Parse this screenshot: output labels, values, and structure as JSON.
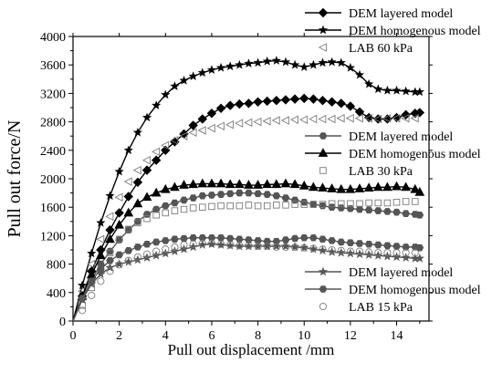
{
  "chart_data": {
    "type": "line",
    "xlabel": "Pull out displacement /mm",
    "ylabel": "Pull out force/N",
    "xlim": [
      0,
      15.4
    ],
    "ylim": [
      0,
      4000
    ],
    "xticks": [
      0,
      2,
      4,
      6,
      8,
      10,
      12,
      14
    ],
    "yticks": [
      0,
      400,
      800,
      1200,
      1600,
      2000,
      2400,
      2800,
      3200,
      3600,
      4000
    ],
    "grid": false,
    "legend_groups": [
      {
        "placement": "top-right",
        "entries": [
          {
            "label": "DEM layered model",
            "marker": "diamond"
          },
          {
            "label": "DEM homogenous model",
            "marker": "star"
          },
          {
            "label": "LAB   60 kPa",
            "marker": "triangle-left"
          }
        ]
      },
      {
        "placement": "center-right",
        "entries": [
          {
            "label": "DEM layered model",
            "marker": "hexagon"
          },
          {
            "label": "DEM homogenous model",
            "marker": "triangle-up"
          },
          {
            "label": "LAB   30 kPa",
            "marker": "square"
          }
        ]
      },
      {
        "placement": "bottom-right",
        "entries": [
          {
            "label": "DEM layered model",
            "marker": "star"
          },
          {
            "label": "DEM homogenous model",
            "marker": "hexagon"
          },
          {
            "label": "LAB   15 kPa",
            "marker": "circle"
          }
        ]
      }
    ],
    "series": [
      {
        "name": "DEM layered model",
        "group": "60 kPa",
        "marker": "diamond",
        "color": "#000000",
        "line": true,
        "x": [
          0,
          0.4,
          0.8,
          1.2,
          1.6,
          2.0,
          2.4,
          2.8,
          3.2,
          3.6,
          4.0,
          4.4,
          4.8,
          5.2,
          5.6,
          6.0,
          6.4,
          6.8,
          7.2,
          7.6,
          8.0,
          8.4,
          8.8,
          9.2,
          9.6,
          10.0,
          10.4,
          10.8,
          11.2,
          11.6,
          12.0,
          12.4,
          12.8,
          13.2,
          13.6,
          14.0,
          14.4,
          14.8,
          15.0
        ],
        "y": [
          0,
          350,
          700,
          1000,
          1280,
          1520,
          1750,
          1950,
          2120,
          2260,
          2400,
          2520,
          2630,
          2750,
          2840,
          2920,
          2990,
          3030,
          3050,
          3060,
          3080,
          3090,
          3100,
          3110,
          3120,
          3130,
          3120,
          3100,
          3080,
          3060,
          3020,
          2940,
          2860,
          2840,
          2840,
          2860,
          2900,
          2920,
          2930
        ]
      },
      {
        "name": "DEM homogenous model",
        "group": "60 kPa",
        "marker": "star",
        "color": "#000000",
        "line": true,
        "x": [
          0,
          0.4,
          0.8,
          1.2,
          1.6,
          2.0,
          2.4,
          2.8,
          3.2,
          3.6,
          4.0,
          4.4,
          4.8,
          5.2,
          5.6,
          6.0,
          6.4,
          6.8,
          7.2,
          7.6,
          8.0,
          8.4,
          8.8,
          9.2,
          9.6,
          10.0,
          10.4,
          10.8,
          11.2,
          11.6,
          12.0,
          12.4,
          12.8,
          13.2,
          13.6,
          14.0,
          14.4,
          14.8,
          15.0
        ],
        "y": [
          0,
          500,
          950,
          1380,
          1760,
          2100,
          2400,
          2650,
          2860,
          3030,
          3180,
          3300,
          3380,
          3440,
          3490,
          3530,
          3560,
          3580,
          3600,
          3620,
          3630,
          3650,
          3660,
          3640,
          3600,
          3570,
          3600,
          3630,
          3640,
          3630,
          3560,
          3460,
          3330,
          3260,
          3240,
          3240,
          3230,
          3220,
          3220
        ]
      },
      {
        "name": "LAB   60 kPa",
        "group": "60 kPa",
        "marker": "triangle-left",
        "color": "#7a7a7a",
        "line": false,
        "x": [
          0,
          0.4,
          0.8,
          1.2,
          1.6,
          2.0,
          2.4,
          2.8,
          3.2,
          3.6,
          4.0,
          4.4,
          4.8,
          5.2,
          5.6,
          6.0,
          6.4,
          6.8,
          7.2,
          7.6,
          8.0,
          8.4,
          8.8,
          9.2,
          9.6,
          10.0,
          10.4,
          10.8,
          11.2,
          11.6,
          12.0,
          12.4,
          12.8,
          13.2,
          13.6,
          14.0,
          14.4,
          14.8
        ],
        "y": [
          0,
          420,
          800,
          1150,
          1470,
          1740,
          1960,
          2120,
          2260,
          2380,
          2470,
          2540,
          2600,
          2650,
          2680,
          2710,
          2740,
          2760,
          2780,
          2790,
          2800,
          2810,
          2820,
          2820,
          2830,
          2830,
          2840,
          2840,
          2840,
          2850,
          2850,
          2850,
          2850,
          2840,
          2850,
          2850,
          2850,
          2850
        ]
      },
      {
        "name": "DEM layered model",
        "group": "30 kPa",
        "marker": "hexagon",
        "color": "#555555",
        "line": true,
        "x": [
          0,
          0.4,
          0.8,
          1.2,
          1.6,
          2.0,
          2.4,
          2.8,
          3.2,
          3.6,
          4.0,
          4.4,
          4.8,
          5.2,
          5.6,
          6.0,
          6.4,
          6.8,
          7.2,
          7.6,
          8.0,
          8.4,
          8.8,
          9.2,
          9.6,
          10.0,
          10.4,
          10.8,
          11.2,
          11.6,
          12.0,
          12.4,
          12.8,
          13.2,
          13.6,
          14.0,
          14.4,
          14.8,
          15.0
        ],
        "y": [
          0,
          310,
          580,
          800,
          980,
          1140,
          1280,
          1400,
          1500,
          1570,
          1620,
          1660,
          1700,
          1730,
          1760,
          1770,
          1780,
          1790,
          1800,
          1800,
          1790,
          1780,
          1760,
          1730,
          1700,
          1670,
          1640,
          1620,
          1600,
          1590,
          1580,
          1570,
          1560,
          1550,
          1540,
          1530,
          1510,
          1500,
          1490
        ]
      },
      {
        "name": "DEM homogenous model",
        "group": "30 kPa",
        "marker": "triangle-up",
        "color": "#000000",
        "line": true,
        "x": [
          0,
          0.4,
          0.8,
          1.2,
          1.6,
          2.0,
          2.4,
          2.8,
          3.2,
          3.6,
          4.0,
          4.4,
          4.8,
          5.2,
          5.6,
          6.0,
          6.4,
          6.8,
          7.2,
          7.6,
          8.0,
          8.4,
          8.8,
          9.2,
          9.6,
          10.0,
          10.4,
          10.8,
          11.2,
          11.6,
          12.0,
          12.4,
          12.8,
          13.2,
          13.6,
          14.0,
          14.4,
          14.8,
          15.0
        ],
        "y": [
          0,
          350,
          650,
          920,
          1150,
          1350,
          1520,
          1650,
          1740,
          1800,
          1850,
          1880,
          1910,
          1920,
          1930,
          1930,
          1930,
          1920,
          1920,
          1910,
          1910,
          1920,
          1920,
          1930,
          1920,
          1900,
          1880,
          1870,
          1860,
          1850,
          1850,
          1860,
          1870,
          1880,
          1880,
          1890,
          1880,
          1850,
          1810
        ]
      },
      {
        "name": "LAB   30 kPa",
        "group": "30 kPa",
        "marker": "square",
        "color": "#7a7a7a",
        "line": false,
        "x": [
          0,
          0.4,
          0.8,
          1.2,
          1.6,
          2.0,
          2.4,
          2.8,
          3.2,
          3.6,
          4.0,
          4.4,
          4.8,
          5.2,
          5.6,
          6.0,
          6.4,
          6.8,
          7.2,
          7.6,
          8.0,
          8.4,
          8.8,
          9.2,
          9.6,
          10.0,
          10.4,
          10.8,
          11.2,
          11.6,
          12.0,
          12.4,
          12.8,
          13.2,
          13.6,
          14.0,
          14.4,
          14.8
        ],
        "y": [
          0,
          220,
          470,
          730,
          960,
          1150,
          1290,
          1380,
          1440,
          1490,
          1520,
          1550,
          1570,
          1590,
          1600,
          1610,
          1620,
          1620,
          1620,
          1630,
          1620,
          1620,
          1630,
          1630,
          1640,
          1640,
          1640,
          1640,
          1650,
          1650,
          1650,
          1650,
          1660,
          1660,
          1660,
          1670,
          1680,
          1680
        ]
      },
      {
        "name": "DEM layered model",
        "group": "15 kPa",
        "marker": "star",
        "color": "#555555",
        "line": true,
        "x": [
          0,
          0.4,
          0.8,
          1.2,
          1.6,
          2.0,
          2.4,
          2.8,
          3.2,
          3.6,
          4.0,
          4.4,
          4.8,
          5.2,
          5.6,
          6.0,
          6.4,
          6.8,
          7.2,
          7.6,
          8.0,
          8.4,
          8.8,
          9.2,
          9.6,
          10.0,
          10.4,
          10.8,
          11.2,
          11.6,
          12.0,
          12.4,
          12.8,
          13.2,
          13.6,
          14.0,
          14.4,
          14.8,
          15.0
        ],
        "y": [
          0,
          300,
          520,
          660,
          750,
          800,
          830,
          860,
          890,
          920,
          950,
          980,
          1010,
          1040,
          1070,
          1080,
          1070,
          1060,
          1050,
          1050,
          1050,
          1050,
          1050,
          1050,
          1040,
          1030,
          1010,
          990,
          970,
          960,
          950,
          940,
          930,
          920,
          910,
          900,
          890,
          880,
          880
        ]
      },
      {
        "name": "DEM homogenous model",
        "group": "15 kPa",
        "marker": "hexagon",
        "color": "#555555",
        "line": true,
        "x": [
          0,
          0.4,
          0.8,
          1.2,
          1.6,
          2.0,
          2.4,
          2.8,
          3.2,
          3.6,
          4.0,
          4.4,
          4.8,
          5.2,
          5.6,
          6.0,
          6.4,
          6.8,
          7.2,
          7.6,
          8.0,
          8.4,
          8.8,
          9.2,
          9.6,
          10.0,
          10.4,
          10.8,
          11.2,
          11.6,
          12.0,
          12.4,
          12.8,
          13.2,
          13.6,
          14.0,
          14.4,
          14.8,
          15.0
        ],
        "y": [
          0,
          320,
          560,
          730,
          850,
          930,
          990,
          1040,
          1080,
          1110,
          1130,
          1150,
          1160,
          1170,
          1170,
          1170,
          1170,
          1160,
          1150,
          1140,
          1130,
          1120,
          1120,
          1140,
          1160,
          1170,
          1170,
          1150,
          1130,
          1110,
          1100,
          1090,
          1080,
          1070,
          1060,
          1050,
          1040,
          1040,
          1030
        ]
      },
      {
        "name": "LAB   15 kPa",
        "group": "15 kPa",
        "marker": "circle",
        "color": "#7a7a7a",
        "line": false,
        "x": [
          0,
          0.4,
          0.8,
          1.2,
          1.6,
          2.0,
          2.4,
          2.8,
          3.2,
          3.6,
          4.0,
          4.4,
          4.8,
          5.2,
          5.6,
          6.0,
          6.4,
          6.8,
          7.2,
          7.6,
          8.0,
          8.4,
          8.8,
          9.2,
          9.6,
          10.0,
          10.4,
          10.8,
          11.2,
          11.6,
          12.0,
          12.4,
          12.8,
          13.2,
          13.6,
          14.0,
          14.4,
          14.8
        ],
        "y": [
          0,
          150,
          360,
          560,
          700,
          790,
          850,
          900,
          940,
          980,
          1010,
          1040,
          1070,
          1080,
          1090,
          1090,
          1080,
          1070,
          1060,
          1060,
          1050,
          1050,
          1040,
          1040,
          1040,
          1030,
          1020,
          1010,
          1000,
          990,
          980,
          980,
          970,
          960,
          960,
          960,
          960,
          960
        ]
      }
    ]
  }
}
